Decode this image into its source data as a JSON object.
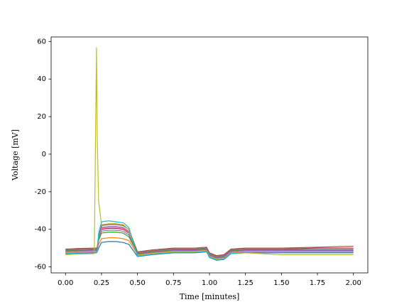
{
  "chart_data": {
    "type": "line",
    "xlabel": "Time [minutes]",
    "ylabel": "Voltage [mV]",
    "x": [
      0,
      0.1,
      0.2,
      0.215,
      0.22,
      0.23,
      0.25,
      0.3,
      0.35,
      0.4,
      0.44,
      0.5,
      0.6,
      0.75,
      0.9,
      0.98,
      1.0,
      1.05,
      1.1,
      1.15,
      1.25,
      1.5,
      1.75,
      2.0
    ],
    "series": [
      {
        "color": "#1f77b4",
        "values": [
          -53,
          -52.7,
          -52.5,
          -52.5,
          -52,
          -50,
          -47,
          -46.5,
          -46.5,
          -47,
          -48,
          -54.5,
          -53.5,
          -52.5,
          -52.5,
          -52,
          -55,
          -56.5,
          -56,
          -53,
          -52.5,
          -52.5,
          -52.5,
          -52.5
        ]
      },
      {
        "color": "#ff7f0e",
        "values": [
          -52,
          -51.7,
          -51.5,
          -51.5,
          -51,
          -48,
          -45,
          -44.5,
          -44.5,
          -45,
          -46,
          -53.5,
          -52.5,
          -51.5,
          -51.5,
          -51,
          -54,
          -55.5,
          -55,
          -52,
          -51.5,
          -51.5,
          -51.5,
          -51.5
        ]
      },
      {
        "color": "#2ca02c",
        "values": [
          -51.5,
          -51.2,
          -51,
          -51,
          -50.5,
          -46,
          -42,
          -41.5,
          -41.5,
          -42,
          -44,
          -53,
          -52,
          -51,
          -51,
          -50.5,
          -53.5,
          -55,
          -54.5,
          -51.5,
          -51,
          -51,
          -51,
          -51
        ]
      },
      {
        "color": "#d62728",
        "values": [
          -51,
          -50.7,
          -50.5,
          -50.5,
          -50,
          -45,
          -40,
          -39.5,
          -39.5,
          -40,
          -42,
          -52.5,
          -51.5,
          -50.5,
          -50.5,
          -50,
          -53,
          -54.5,
          -54,
          -51,
          -50.5,
          -50.5,
          -50,
          -50
        ]
      },
      {
        "color": "#9467bd",
        "values": [
          -51.8,
          -51.5,
          -51.3,
          -51.3,
          -50.8,
          -45,
          -39,
          -38.5,
          -38.5,
          -39,
          -41,
          -53.3,
          -52.3,
          -51.3,
          -51.3,
          -50.8,
          -53.8,
          -55.3,
          -54.8,
          -51.8,
          -51.3,
          -51.3,
          -51.3,
          -51.3
        ]
      },
      {
        "color": "#8c564b",
        "values": [
          -50.5,
          -50.2,
          -50,
          -50,
          -49.5,
          -44,
          -38,
          -37.5,
          -37.5,
          -38,
          -40,
          -52,
          -51,
          -50,
          -50,
          -49.5,
          -52.5,
          -54,
          -53.5,
          -50.5,
          -50,
          -50,
          -49.5,
          -49
        ]
      },
      {
        "color": "#e377c2",
        "values": [
          -52.5,
          -52.2,
          -52,
          -52,
          -51.5,
          -45,
          -39.5,
          -39,
          -39,
          -39.5,
          -41.5,
          -54,
          -53,
          -52,
          -52,
          -51.5,
          -54.5,
          -56,
          -55.5,
          -52.5,
          -52,
          -52,
          -52,
          -52
        ]
      },
      {
        "color": "#7f7f7f",
        "values": [
          -51.2,
          -50.9,
          -50.7,
          -50.7,
          -50.2,
          -45,
          -41,
          -40.5,
          -40.5,
          -41,
          -43,
          -52.7,
          -51.7,
          -50.7,
          -50.7,
          -50.2,
          -53.2,
          -54.7,
          -54.2,
          -51.2,
          -50.7,
          -50.7,
          -50.7,
          -50.7
        ]
      },
      {
        "color": "#bcbd22",
        "values": [
          -53.5,
          -53.2,
          -53,
          56.7,
          10,
          -25,
          -37.5,
          -37,
          -37,
          -37.5,
          -40,
          -54,
          -53,
          -52,
          -52,
          -51.5,
          -54.5,
          -56,
          -55.5,
          -53,
          -52.5,
          -53.5,
          -53.5,
          -53.5
        ]
      },
      {
        "color": "#17becf",
        "values": [
          -52.8,
          -52.5,
          -52.3,
          -52.3,
          -51.8,
          -42,
          -36,
          -35.5,
          -36,
          -36.5,
          -39,
          -54.3,
          -53.3,
          -52.3,
          -52.3,
          -51.8,
          -54.8,
          -56.3,
          -55.8,
          -52.8,
          -52.3,
          -52.3,
          -52.3,
          -52.3
        ]
      }
    ],
    "xlim": [
      -0.1,
      2.1
    ],
    "xticks": [
      {
        "value": 0,
        "label": "0.00"
      },
      {
        "value": 0.25,
        "label": "0.25"
      },
      {
        "value": 0.5,
        "label": "0.50"
      },
      {
        "value": 0.75,
        "label": "0.75"
      },
      {
        "value": 1.0,
        "label": "1.00"
      },
      {
        "value": 1.25,
        "label": "1.25"
      },
      {
        "value": 1.5,
        "label": "1.50"
      },
      {
        "value": 1.75,
        "label": "1.75"
      },
      {
        "value": 2.0,
        "label": "2.00"
      }
    ],
    "ylim": [
      -63.2,
      62.4
    ],
    "yticks": [
      -60,
      -40,
      -20,
      0,
      20,
      40,
      60
    ],
    "grid": false
  }
}
